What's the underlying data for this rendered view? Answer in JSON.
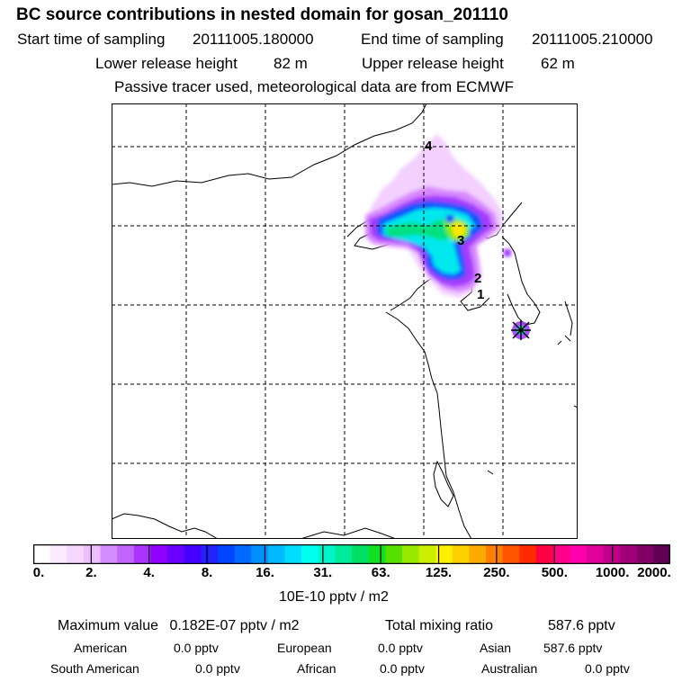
{
  "header": {
    "title": "BC  source contributions in nested domain for gosan_201110",
    "start_label": "Start time of sampling",
    "start_value": "20111005.180000",
    "end_label": "End time of sampling",
    "end_value": "20111005.210000",
    "lower_label": "Lower release height",
    "lower_value": "82 m",
    "upper_label": "Upper release height",
    "upper_value": "62 m",
    "note": "Passive tracer used, meteorological data are from ECMWF"
  },
  "map": {
    "trajectory_labels": [
      "4",
      "3",
      "2",
      "1"
    ]
  },
  "colorbar": {
    "colors": [
      "#ffffff",
      "#fbeaff",
      "#f5d6ff",
      "#edbfff",
      "#d58cff",
      "#c066ff",
      "#aa33ff",
      "#8f00ff",
      "#6a00ff",
      "#4400ff",
      "#2222ff",
      "#0044ff",
      "#006aff",
      "#0090ff",
      "#00b8ff",
      "#00ddff",
      "#00ffee",
      "#00f5c8",
      "#00ec9a",
      "#00e066",
      "#11e022",
      "#55e000",
      "#99e800",
      "#ccee00",
      "#fff000",
      "#ffd000",
      "#ffaa00",
      "#ff8000",
      "#ff5500",
      "#ff2a00",
      "#ff0044",
      "#ff0088",
      "#ff00aa",
      "#e0009a",
      "#c00088",
      "#a00078",
      "#800066",
      "#600050"
    ],
    "ticks": [
      "0.",
      "2.",
      "4.",
      "8.",
      "16.",
      "31.",
      "63.",
      "125.",
      "250.",
      "500.",
      "1000.",
      "2000."
    ],
    "units": "10E-10 pptv / m2"
  },
  "footer": {
    "max_label": "Maximum value",
    "max_value": "0.182E-07 pptv / m2",
    "total_label": "Total mixing ratio",
    "total_value": "587.6 pptv",
    "regions": [
      {
        "name": "American",
        "value": "0.0 pptv"
      },
      {
        "name": "European",
        "value": "0.0 pptv"
      },
      {
        "name": "Asian",
        "value": "587.6 pptv"
      },
      {
        "name": "South American",
        "value": "0.0 pptv"
      },
      {
        "name": "African",
        "value": "0.0 pptv"
      },
      {
        "name": "Australian",
        "value": "0.0 pptv"
      }
    ]
  }
}
